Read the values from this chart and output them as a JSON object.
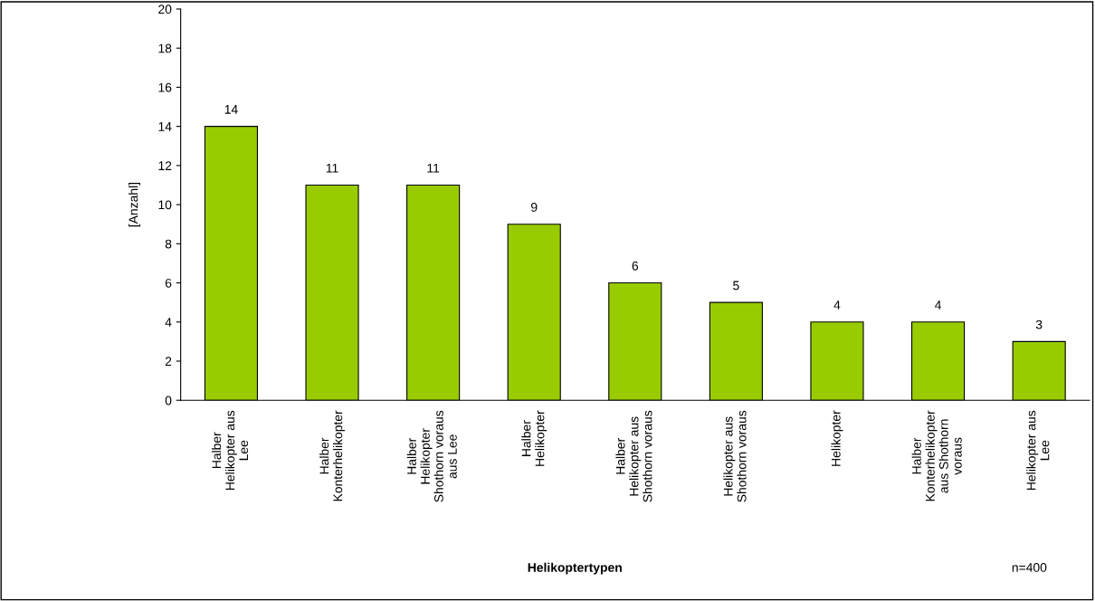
{
  "chart_data": {
    "type": "bar",
    "xlabel": "Helikoptertypen",
    "ylabel": "[Anzahl]",
    "categories": [
      "Halber\nHelikopter aus\nLee",
      "Halber\nKonterhelikopter",
      "Halber\nHelikopter\nShothorn voraus\naus Lee",
      "Halber\nHelikopter",
      "Halber\nHelikopter aus\nShothorn voraus",
      "Helikopter aus\nShothorn voraus",
      "Helikopter",
      "Halber\nKonterhelikopter\naus Shothorn\nvoraus",
      "Helikopter aus\nLee"
    ],
    "values": [
      14,
      11,
      11,
      9,
      6,
      5,
      4,
      4,
      3
    ],
    "color": "#99cc00",
    "ylim": [
      0,
      20
    ],
    "yticks": [
      0,
      2,
      4,
      6,
      8,
      10,
      12,
      14,
      16,
      18,
      20
    ],
    "data_labels": true,
    "grid": false,
    "legend": false,
    "annotations": [
      "n=400"
    ]
  }
}
